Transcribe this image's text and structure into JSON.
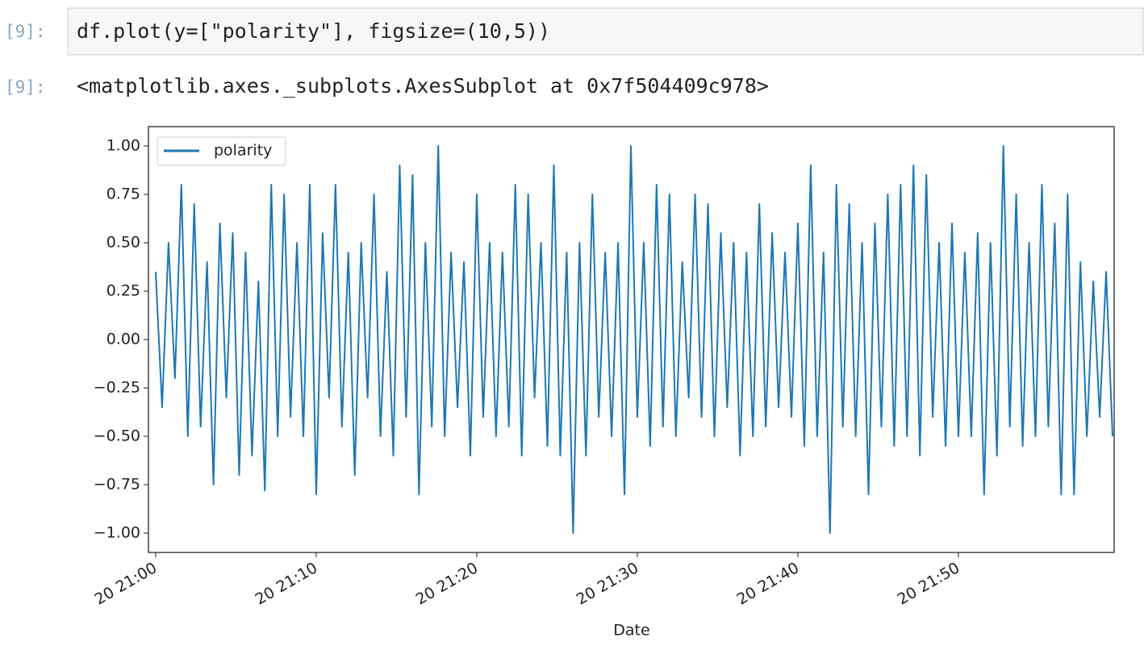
{
  "notebook": {
    "input": {
      "prompt": "[9]:",
      "code": "df.plot(y=[\"polarity\"], figsize=(10,5))"
    },
    "output": {
      "prompt": "[9]:",
      "text": "<matplotlib.axes._subplots.AxesSubplot at 0x7f504409c978>"
    }
  },
  "chart_data": {
    "type": "line",
    "xlabel": "Date",
    "grid": false,
    "legend": "upper left",
    "xlim": [
      -0.45,
      59.7
    ],
    "ylim": [
      -1.1,
      1.1
    ],
    "xticks": [
      {
        "value": 0,
        "label": "20 21:00"
      },
      {
        "value": 10,
        "label": "20 21:10"
      },
      {
        "value": 20,
        "label": "20 21:20"
      },
      {
        "value": 30,
        "label": "20 21:30"
      },
      {
        "value": 40,
        "label": "20 21:40"
      },
      {
        "value": 50,
        "label": "20 21:50"
      }
    ],
    "yticks": [
      {
        "value": 1,
        "label": "1.00"
      },
      {
        "value": 0.75,
        "label": "0.75"
      },
      {
        "value": 0.5,
        "label": "0.50"
      },
      {
        "value": 0.25,
        "label": "0.25"
      },
      {
        "value": 0,
        "label": "0.00"
      },
      {
        "value": -0.25,
        "label": "−0.25"
      },
      {
        "value": -0.5,
        "label": "−0.50"
      },
      {
        "value": -0.75,
        "label": "−0.75"
      },
      {
        "value": -1,
        "label": "−1.00"
      }
    ],
    "x": [
      0,
      0.4,
      0.8,
      1.2,
      1.6,
      2,
      2.4,
      2.8,
      3.2,
      3.6,
      4,
      4.4,
      4.8,
      5.2,
      5.6,
      6,
      6.4,
      6.8,
      7.2,
      7.6,
      8,
      8.4,
      8.8,
      9.2,
      9.6,
      10,
      10.4,
      10.8,
      11.2,
      11.6,
      12,
      12.4,
      12.8,
      13.2,
      13.6,
      14,
      14.4,
      14.8,
      15.2,
      15.6,
      16,
      16.4,
      16.8,
      17.2,
      17.6,
      18,
      18.4,
      18.8,
      19.2,
      19.6,
      20,
      20.4,
      20.8,
      21.2,
      21.6,
      22,
      22.4,
      22.8,
      23.2,
      23.6,
      24,
      24.4,
      24.8,
      25.2,
      25.6,
      26,
      26.4,
      26.8,
      27.2,
      27.6,
      28,
      28.4,
      28.8,
      29.2,
      29.6,
      30,
      30.4,
      30.8,
      31.2,
      31.6,
      32,
      32.4,
      32.8,
      33.2,
      33.6,
      34,
      34.4,
      34.8,
      35.2,
      35.6,
      36,
      36.4,
      36.8,
      37.2,
      37.6,
      38,
      38.4,
      38.8,
      39.2,
      39.6,
      40,
      40.4,
      40.8,
      41.2,
      41.6,
      42,
      42.4,
      42.8,
      43.2,
      43.6,
      44,
      44.4,
      44.8,
      45.2,
      45.6,
      46,
      46.4,
      46.8,
      47.2,
      47.6,
      48,
      48.4,
      48.8,
      49.2,
      49.6,
      50,
      50.4,
      50.8,
      51.2,
      51.6,
      52,
      52.4,
      52.8,
      53.2,
      53.6,
      54,
      54.4,
      54.8,
      55.2,
      55.6,
      56,
      56.4,
      56.8,
      57.2,
      57.6,
      58,
      58.4,
      58.8,
      59.2,
      59.6
    ],
    "series": [
      {
        "name": "polarity",
        "color": "#1f77b4",
        "values": [
          0.35,
          -0.35,
          0.5,
          -0.2,
          0.8,
          -0.5,
          0.7,
          -0.45,
          0.4,
          -0.75,
          0.6,
          -0.3,
          0.55,
          -0.7,
          0.45,
          -0.6,
          0.3,
          -0.78,
          0.8,
          -0.5,
          0.75,
          -0.4,
          0.5,
          -0.5,
          0.8,
          -0.8,
          0.55,
          -0.3,
          0.8,
          -0.45,
          0.45,
          -0.7,
          0.5,
          -0.3,
          0.75,
          -0.5,
          0.35,
          -0.6,
          0.9,
          -0.4,
          0.85,
          -0.8,
          0.5,
          -0.45,
          1.0,
          -0.5,
          0.45,
          -0.35,
          0.4,
          -0.6,
          0.75,
          -0.4,
          0.5,
          -0.5,
          0.45,
          -0.45,
          0.8,
          -0.6,
          0.75,
          -0.3,
          0.5,
          -0.55,
          0.9,
          -0.6,
          0.45,
          -1.0,
          0.5,
          -0.6,
          0.75,
          -0.4,
          0.45,
          -0.5,
          0.5,
          -0.8,
          1.0,
          -0.4,
          0.5,
          -0.55,
          0.8,
          -0.45,
          0.75,
          -0.5,
          0.4,
          -0.3,
          0.75,
          -0.4,
          0.7,
          -0.5,
          0.55,
          -0.35,
          0.5,
          -0.6,
          0.45,
          -0.5,
          0.7,
          -0.45,
          0.55,
          -0.35,
          0.45,
          -0.4,
          0.6,
          -0.55,
          0.9,
          -0.5,
          0.45,
          -1.0,
          0.8,
          -0.45,
          0.7,
          -0.5,
          0.5,
          -0.8,
          0.6,
          -0.45,
          0.75,
          -0.55,
          0.8,
          -0.5,
          0.9,
          -0.6,
          0.85,
          -0.4,
          0.5,
          -0.55,
          0.6,
          -0.5,
          0.45,
          -0.5,
          0.55,
          -0.8,
          0.5,
          -0.6,
          1.0,
          -0.45,
          0.75,
          -0.55,
          0.5,
          -0.5,
          0.8,
          -0.45,
          0.6,
          -0.8,
          0.75,
          -0.8,
          0.4,
          -0.5,
          0.3,
          -0.4,
          0.35,
          -0.5
        ]
      }
    ]
  }
}
